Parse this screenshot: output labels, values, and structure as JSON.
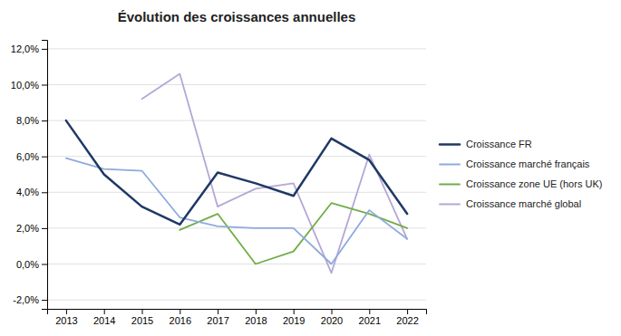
{
  "chart_data": {
    "type": "line",
    "title": "Évolution des croissances annuelles",
    "x": [
      2013,
      2014,
      2015,
      2016,
      2017,
      2018,
      2019,
      2020,
      2021,
      2022
    ],
    "series": [
      {
        "name": "Croissance FR",
        "color": "#1f3864",
        "values": [
          0.08,
          0.05,
          0.032,
          0.022,
          0.051,
          0.045,
          0.038,
          0.07,
          0.058,
          0.028
        ]
      },
      {
        "name": "Croissance marché français",
        "color": "#8faadc",
        "values": [
          0.059,
          0.053,
          0.052,
          0.026,
          0.021,
          0.02,
          0.02,
          0.0,
          0.03,
          0.014
        ]
      },
      {
        "name": "Croissance zone UE (hors UK)",
        "color": "#70ad47",
        "values": [
          null,
          null,
          null,
          0.019,
          0.028,
          0.0,
          0.007,
          0.034,
          0.028,
          0.02
        ]
      },
      {
        "name": "Croissance marché global",
        "color": "#b4a7d6",
        "values": [
          null,
          null,
          0.092,
          0.106,
          0.032,
          0.042,
          0.045,
          -0.005,
          0.061,
          0.014
        ]
      }
    ],
    "xlim": [
      2012.5,
      2022.5
    ],
    "xticks": [
      2013,
      2014,
      2015,
      2016,
      2017,
      2018,
      2019,
      2020,
      2021,
      2022
    ],
    "ylim": [
      -0.025,
      0.125
    ],
    "yticks": [
      {
        "value": -0.02,
        "label": "-2,0%"
      },
      {
        "value": 0.0,
        "label": "0,0%"
      },
      {
        "value": 0.02,
        "label": "2,0%"
      },
      {
        "value": 0.04,
        "label": "4,0%"
      },
      {
        "value": 0.06,
        "label": "6,0%"
      },
      {
        "value": 0.08,
        "label": "8,0%"
      },
      {
        "value": 0.1,
        "label": "10,0%"
      },
      {
        "value": 0.12,
        "label": "12,0%"
      }
    ],
    "grid": true,
    "legend": "right"
  }
}
